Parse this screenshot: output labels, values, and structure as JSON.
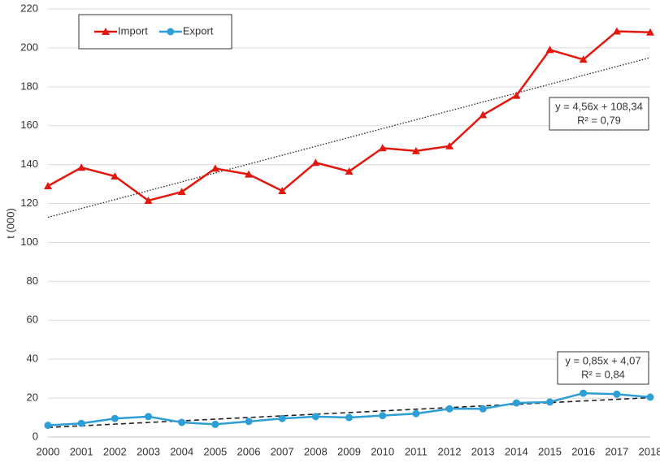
{
  "chart_data": {
    "type": "line",
    "categories": [
      "2000",
      "2001",
      "2002",
      "2003",
      "2004",
      "2005",
      "2006",
      "2007",
      "2008",
      "2009",
      "2010",
      "2011",
      "2012",
      "2013",
      "2014",
      "2015",
      "2016",
      "2017",
      "2018"
    ],
    "series": [
      {
        "name": "Import",
        "color": "#e3170d",
        "marker": "triangle",
        "values": [
          129,
          138.5,
          134,
          121.5,
          126,
          138,
          135,
          126.5,
          141,
          136.5,
          148.5,
          147,
          149.5,
          165.5,
          175.5,
          199,
          194,
          208.5,
          208
        ]
      },
      {
        "name": "Export",
        "color": "#2e9fd6",
        "marker": "circle",
        "values": [
          6,
          7,
          9.5,
          10.5,
          7.5,
          6.5,
          8,
          9.5,
          10.5,
          10,
          11,
          12,
          14.5,
          14.5,
          17.5,
          18,
          22.5,
          22,
          20.5
        ]
      }
    ],
    "trendlines": [
      {
        "series": 0,
        "slope": 4.56,
        "intercept": 108.34,
        "style": "dotted",
        "label": "y = 4,56x + 108,34",
        "r2_label": "R² = 0,79"
      },
      {
        "series": 1,
        "slope": 0.85,
        "intercept": 4.07,
        "style": "dashed",
        "label": "y = 0,85x + 4,07",
        "r2_label": "R² = 0,84"
      }
    ],
    "ylabel": "t (000)",
    "ylim": [
      0,
      220
    ],
    "yticks": [
      0,
      20,
      40,
      60,
      80,
      100,
      120,
      140,
      160,
      180,
      200,
      220
    ],
    "grid": true,
    "legend": "upper left"
  }
}
